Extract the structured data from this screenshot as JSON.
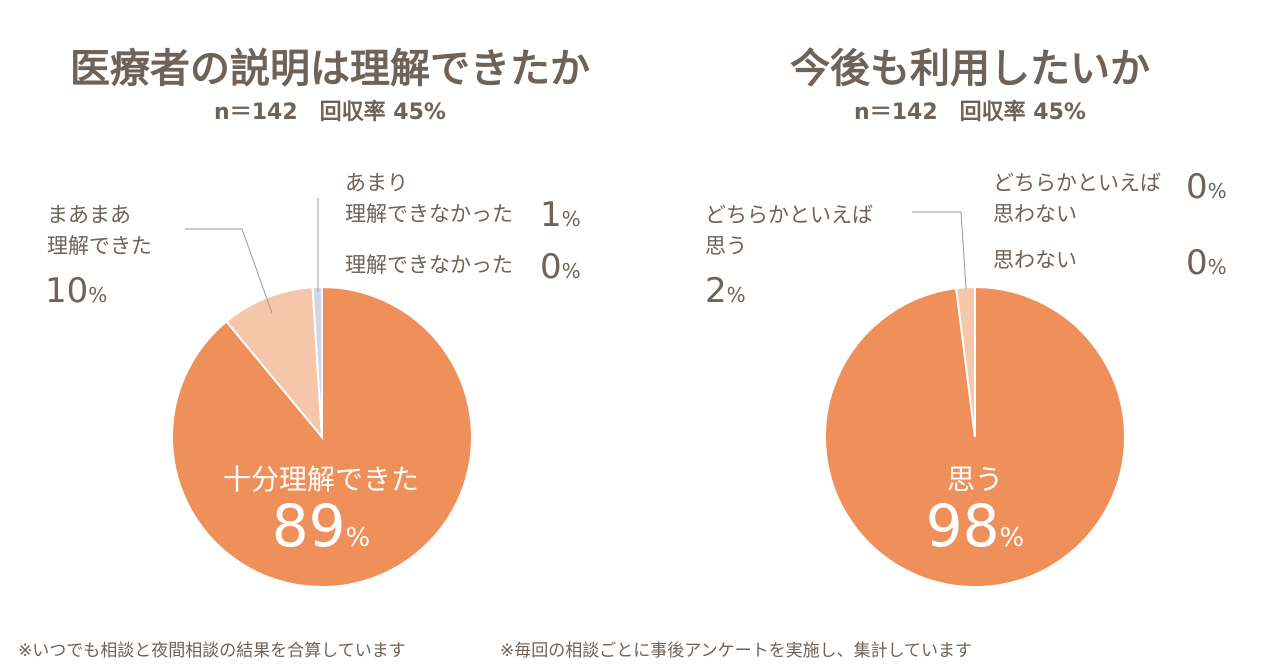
{
  "chart_data": [
    {
      "type": "pie",
      "title": "医療者の説明は理解できたか",
      "subtitle": "n＝142　回収率 45%",
      "colors": [
        "#ef8f5a",
        "#f6c6aa",
        "#cfd6e6",
        "#cfd6e6"
      ],
      "slices": [
        {
          "label": "十分理解できた",
          "value": 89,
          "unit": "%"
        },
        {
          "label": "まあまあ理解できた",
          "label_lines": [
            "まあまあ",
            "理解できた"
          ],
          "value": 10,
          "unit": "%"
        },
        {
          "label": "あまり理解できなかった",
          "label_lines": [
            "あまり",
            "理解できなかった"
          ],
          "value": 1,
          "unit": "%"
        },
        {
          "label": "理解できなかった",
          "value": 0,
          "unit": "%"
        }
      ]
    },
    {
      "type": "pie",
      "title": "今後も利用したいか",
      "subtitle": "n＝142　回収率 45%",
      "colors": [
        "#ef8f5a",
        "#f6c6aa",
        "#cfd6e6",
        "#cfd6e6"
      ],
      "slices": [
        {
          "label": "思う",
          "value": 98,
          "unit": "%"
        },
        {
          "label": "どちらかといえば思う",
          "label_lines": [
            "どちらかといえば",
            "思う"
          ],
          "value": 2,
          "unit": "%"
        },
        {
          "label": "どちらかといえば思わない",
          "label_lines": [
            "どちらかといえば",
            "思わない"
          ],
          "value": 0,
          "unit": "%"
        },
        {
          "label": "思わない",
          "value": 0,
          "unit": "%"
        }
      ]
    }
  ],
  "footnotes": [
    "※いつでも相談と夜間相談の結果を合算しています",
    "※毎回の相談ごとに事後アンケートを実施し、集計しています"
  ]
}
